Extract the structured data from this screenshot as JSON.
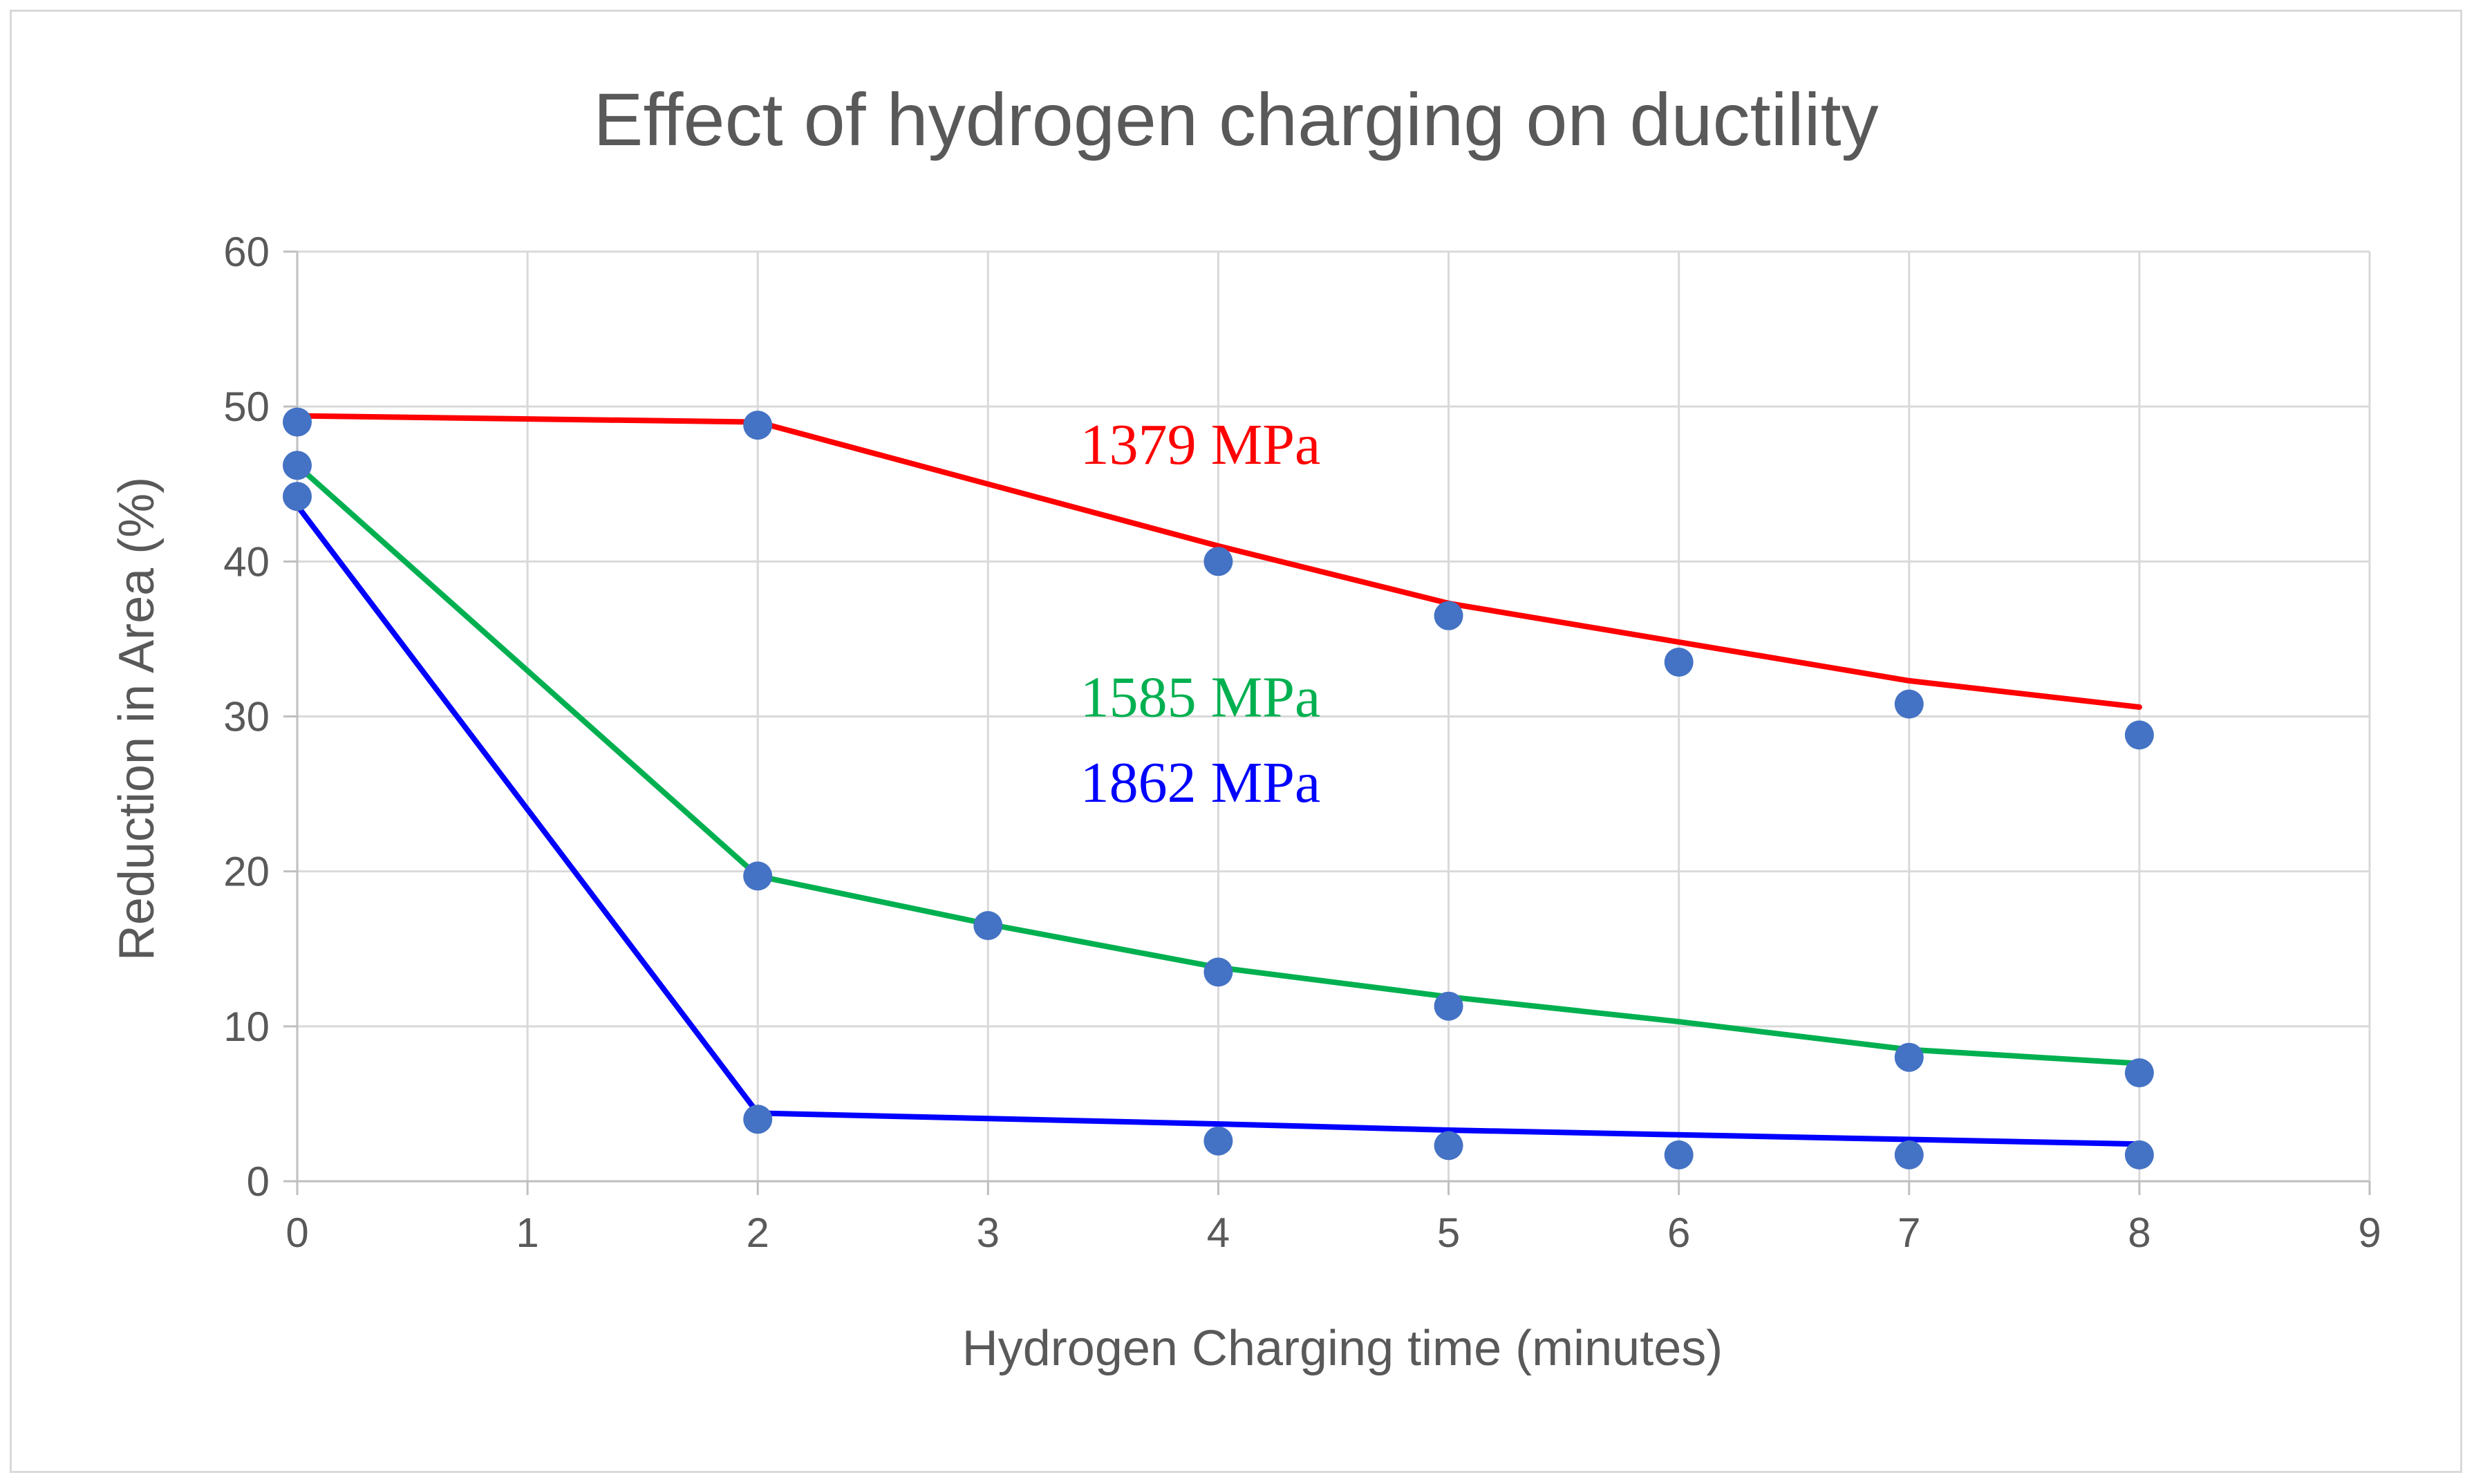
{
  "chart_data": {
    "type": "scatter",
    "title": "Effect of hydrogen charging on ductility",
    "xlabel": "Hydrogen Charging time (minutes)",
    "ylabel": "Reduction in Area (%)",
    "xlim": [
      0,
      9
    ],
    "ylim": [
      0,
      60
    ],
    "xticks": [
      0,
      1,
      2,
      3,
      4,
      5,
      6,
      7,
      8,
      9
    ],
    "yticks": [
      0,
      10,
      20,
      30,
      40,
      50,
      60
    ],
    "grid": true,
    "marker_color": "#4472c4",
    "series": [
      {
        "name": "1379 MPa",
        "label_color": "#ff0000",
        "line_color": "#ff0000",
        "points": {
          "x": [
            0,
            2,
            4,
            5,
            6,
            7,
            8
          ],
          "y": [
            49,
            48.8,
            40,
            36.5,
            33.5,
            30.8,
            28.8
          ]
        },
        "trend": {
          "x": [
            0,
            2,
            3,
            4,
            5,
            6,
            7,
            8
          ],
          "y": [
            49.4,
            49,
            45,
            41,
            37.3,
            34.8,
            32.3,
            30.6
          ]
        }
      },
      {
        "name": "1585 MPa",
        "label_color": "#00b050",
        "line_color": "#00b050",
        "points": {
          "x": [
            0,
            2,
            3,
            4,
            5,
            7,
            8
          ],
          "y": [
            46.2,
            19.7,
            16.5,
            13.5,
            11.3,
            8,
            7
          ]
        },
        "trend": {
          "x": [
            0,
            2,
            3,
            4,
            5,
            6,
            7,
            8
          ],
          "y": [
            46.2,
            19.7,
            16.6,
            13.8,
            11.9,
            10.3,
            8.5,
            7.6
          ]
        }
      },
      {
        "name": "1862 MPa",
        "label_color": "#0000ff",
        "line_color": "#0000ff",
        "points": {
          "x": [
            0,
            2,
            4,
            5,
            6,
            7,
            8
          ],
          "y": [
            44.2,
            4,
            2.6,
            2.3,
            1.7,
            1.7,
            1.7
          ]
        },
        "trend": {
          "x": [
            0,
            2,
            4,
            5,
            6,
            7,
            8
          ],
          "y": [
            43.6,
            4.4,
            3.7,
            3.3,
            3,
            2.7,
            2.4
          ]
        }
      }
    ],
    "annotations": [
      {
        "text": "1379 MPa",
        "x": 3.4,
        "y": 46.3,
        "color": "#ff0000"
      },
      {
        "text": "1585 MPa",
        "x": 3.4,
        "y": 30.0,
        "color": "#00b050"
      },
      {
        "text": "1862 MPa",
        "x": 3.4,
        "y": 24.5,
        "color": "#0000ff"
      }
    ]
  }
}
